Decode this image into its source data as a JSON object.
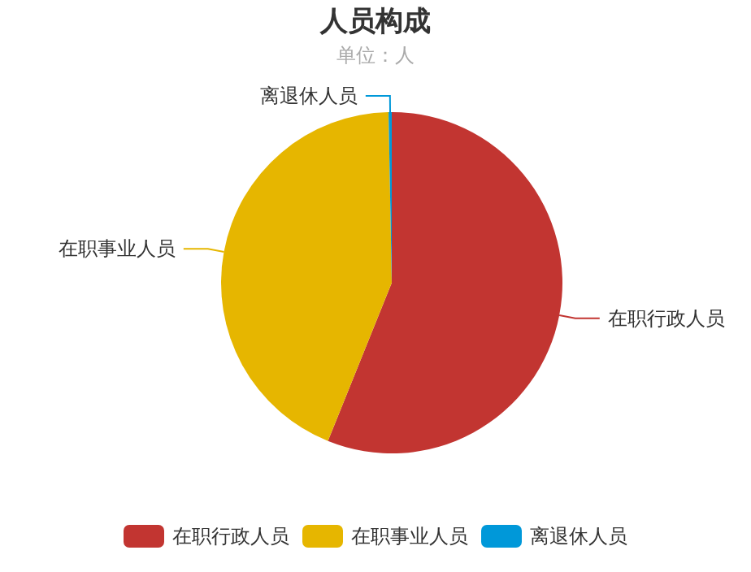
{
  "chart_data": {
    "type": "pie",
    "title": "人员构成",
    "subtitle": "单位：人",
    "categories": [
      "在职行政人员",
      "在职事业人员",
      "离退休人员"
    ],
    "values": [
      56.1,
      43.6,
      0.3
    ],
    "colors": [
      "#c23531",
      "#e6b600",
      "#0098d9"
    ],
    "legend": "bottom"
  }
}
